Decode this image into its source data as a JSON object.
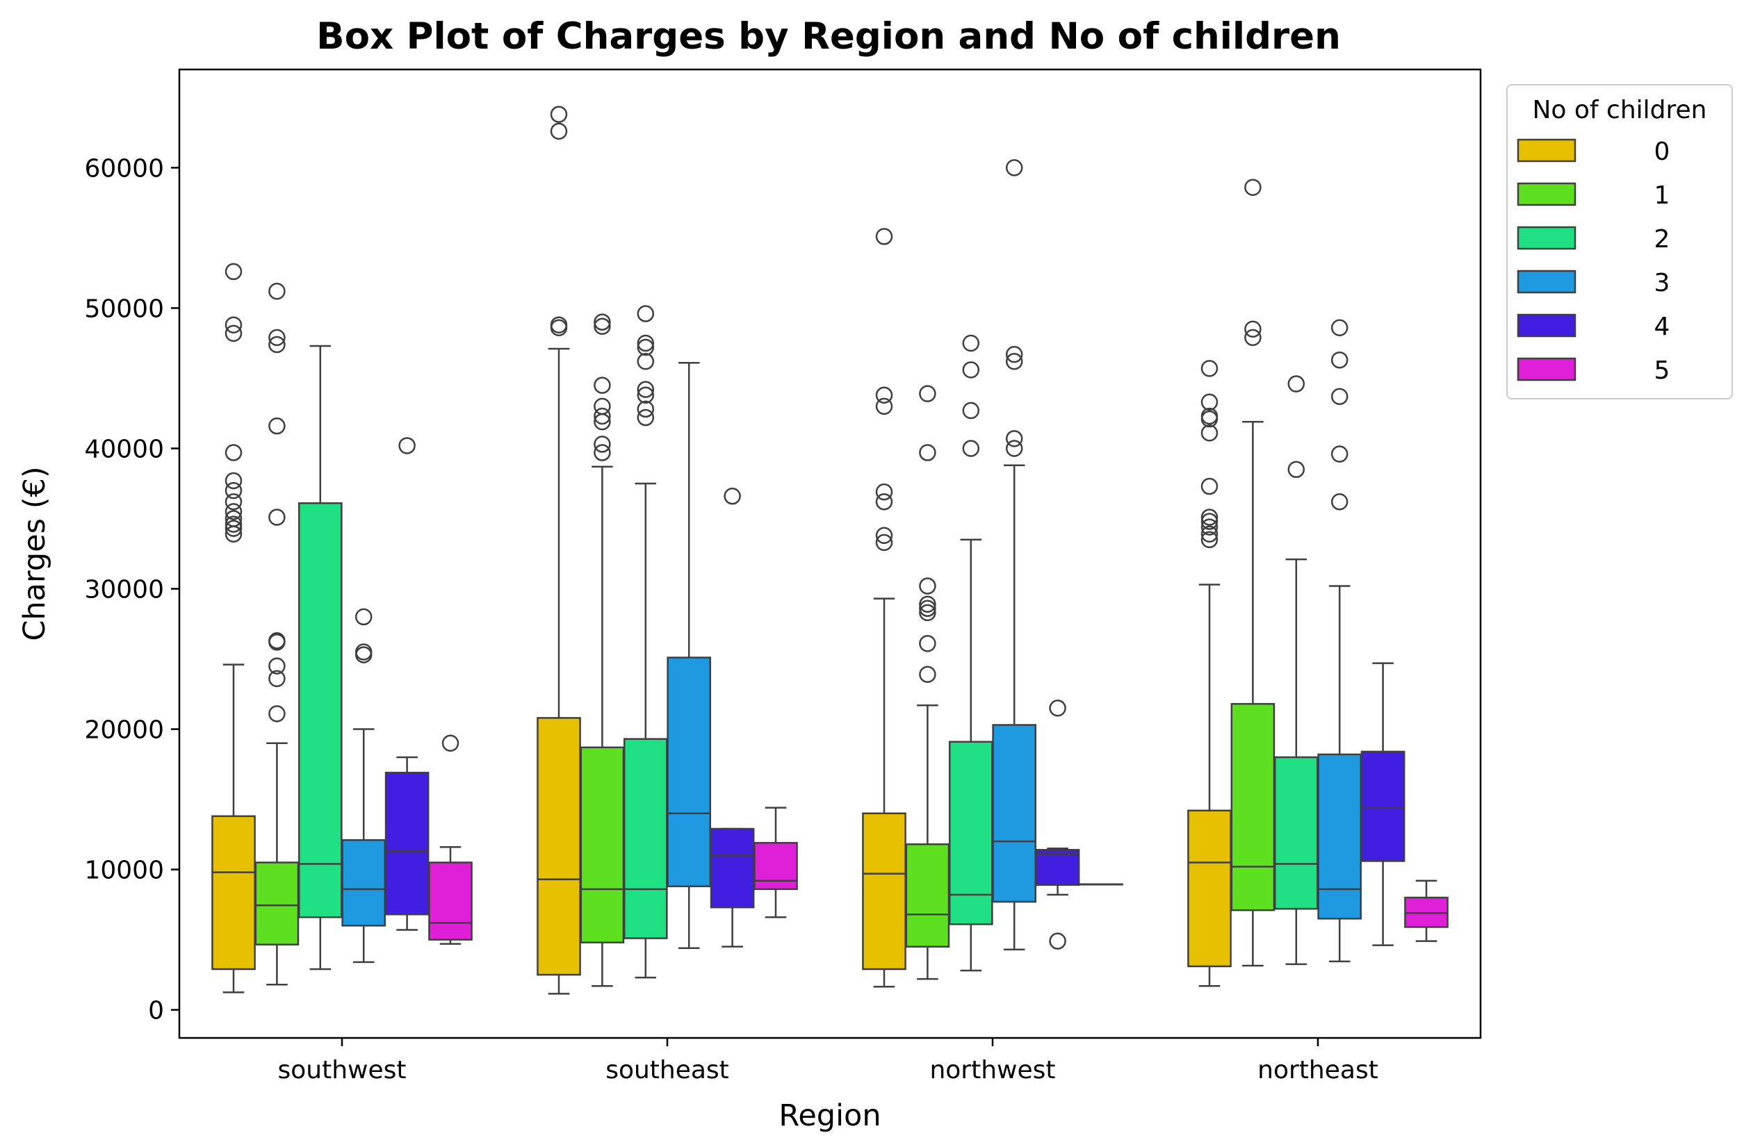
{
  "chart_data": {
    "type": "box",
    "title": "Box Plot of Charges by Region and No of children",
    "xlabel": "Region",
    "ylabel": "Charges (€)",
    "ylim": [
      -2000,
      67000
    ],
    "yticks": [
      "0",
      "10000",
      "20000",
      "30000",
      "40000",
      "50000",
      "60000"
    ],
    "categories": [
      "southwest",
      "southeast",
      "northwest",
      "northeast"
    ],
    "legend": {
      "title": "No of children",
      "position": "upper-right-outside"
    },
    "grid": false,
    "series": [
      {
        "name": "0",
        "color": "#e6c000",
        "boxes": [
          {
            "whislo": 1250,
            "q1": 2900,
            "med": 9800,
            "q3": 13800,
            "whishi": 24600,
            "fliers": [
              33900,
              34300,
              34600,
              35000,
              35500,
              36200,
              37000,
              37700,
              39700,
              48200,
              48800,
              52600
            ]
          },
          {
            "whislo": 1150,
            "q1": 2500,
            "med": 9300,
            "q3": 20800,
            "whishi": 47100,
            "fliers": [
              48600,
              48800,
              62600,
              63800
            ]
          },
          {
            "whislo": 1650,
            "q1": 2900,
            "med": 9700,
            "q3": 14000,
            "whishi": 29300,
            "fliers": [
              33300,
              33800,
              36200,
              36900,
              43000,
              43800,
              55100
            ]
          },
          {
            "whislo": 1700,
            "q1": 3100,
            "med": 10500,
            "q3": 14200,
            "whishi": 30300,
            "fliers": [
              33500,
              33900,
              34400,
              34800,
              35100,
              37300,
              41100,
              42100,
              42300,
              43300,
              45700
            ]
          }
        ]
      },
      {
        "name": "1",
        "color": "#5ce01f",
        "boxes": [
          {
            "whislo": 1800,
            "q1": 4650,
            "med": 7450,
            "q3": 10500,
            "whishi": 19000,
            "fliers": [
              21100,
              23600,
              24500,
              26200,
              26300,
              35100,
              41600,
              47400,
              47900,
              51200
            ]
          },
          {
            "whislo": 1700,
            "q1": 4800,
            "med": 8600,
            "q3": 18700,
            "whishi": 38700,
            "fliers": [
              39700,
              40300,
              41900,
              42300,
              43000,
              44500,
              48700,
              49000
            ]
          },
          {
            "whislo": 2200,
            "q1": 4500,
            "med": 6800,
            "q3": 11800,
            "whishi": 21700,
            "fliers": [
              23900,
              26100,
              28300,
              28600,
              28900,
              30200,
              39700,
              43900
            ]
          },
          {
            "whislo": 3150,
            "q1": 7100,
            "med": 10200,
            "q3": 21800,
            "whishi": 41900,
            "fliers": [
              47900,
              48500,
              58600
            ]
          }
        ]
      },
      {
        "name": "2",
        "color": "#1fe082",
        "boxes": [
          {
            "whislo": 2900,
            "q1": 6600,
            "med": 10400,
            "q3": 36100,
            "whishi": 47300,
            "fliers": []
          },
          {
            "whislo": 2300,
            "q1": 5100,
            "med": 8600,
            "q3": 19300,
            "whishi": 37500,
            "fliers": [
              42200,
              42800,
              43800,
              44200,
              46200,
              47200,
              47500,
              49600
            ]
          },
          {
            "whislo": 2800,
            "q1": 6100,
            "med": 8200,
            "q3": 19100,
            "whishi": 33500,
            "fliers": [
              40000,
              42700,
              45600,
              47500
            ]
          },
          {
            "whislo": 3250,
            "q1": 7200,
            "med": 10400,
            "q3": 18000,
            "whishi": 32100,
            "fliers": [
              38500,
              44600
            ]
          }
        ]
      },
      {
        "name": "3",
        "color": "#1f9ae0",
        "boxes": [
          {
            "whislo": 3400,
            "q1": 6000,
            "med": 8600,
            "q3": 12100,
            "whishi": 20000,
            "fliers": [
              25300,
              25500,
              28000
            ]
          },
          {
            "whislo": 4400,
            "q1": 8800,
            "med": 14000,
            "q3": 25100,
            "whishi": 46100,
            "fliers": []
          },
          {
            "whislo": 4300,
            "q1": 7700,
            "med": 12000,
            "q3": 20300,
            "whishi": 38800,
            "fliers": [
              40000,
              40700,
              46200,
              46700,
              60000
            ]
          },
          {
            "whislo": 3450,
            "q1": 6500,
            "med": 8600,
            "q3": 18200,
            "whishi": 30200,
            "fliers": [
              36200,
              39600,
              43700,
              46300,
              48600
            ]
          }
        ]
      },
      {
        "name": "4",
        "color": "#421fe0",
        "boxes": [
          {
            "whislo": 5700,
            "q1": 6800,
            "med": 11300,
            "q3": 16900,
            "whishi": 18000,
            "fliers": [
              40200
            ]
          },
          {
            "whislo": 4500,
            "q1": 7300,
            "med": 11000,
            "q3": 12900,
            "whishi": 12900,
            "fliers": [
              36600
            ]
          },
          {
            "whislo": 8200,
            "q1": 8900,
            "med": 11100,
            "q3": 11400,
            "whishi": 11500,
            "fliers": [
              4900,
              21500
            ]
          },
          {
            "whislo": 4600,
            "q1": 10600,
            "med": 14400,
            "q3": 18400,
            "whishi": 24700,
            "fliers": []
          }
        ]
      },
      {
        "name": "5",
        "color": "#e01fd8",
        "boxes": [
          {
            "whislo": 4700,
            "q1": 5000,
            "med": 6200,
            "q3": 10500,
            "whishi": 11600,
            "fliers": [
              19000
            ]
          },
          {
            "whislo": 6600,
            "q1": 8600,
            "med": 9200,
            "q3": 11900,
            "whishi": 14400,
            "fliers": []
          },
          {
            "whislo": 8950,
            "q1": 8950,
            "med": 8950,
            "q3": 8950,
            "whishi": 8950,
            "fliers": []
          },
          {
            "whislo": 4900,
            "q1": 5900,
            "med": 6900,
            "q3": 8000,
            "whishi": 9200,
            "fliers": []
          }
        ]
      }
    ]
  }
}
